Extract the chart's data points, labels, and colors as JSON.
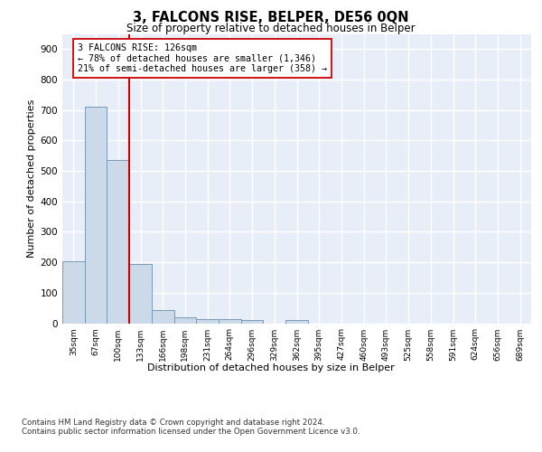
{
  "title": "3, FALCONS RISE, BELPER, DE56 0QN",
  "subtitle": "Size of property relative to detached houses in Belper",
  "xlabel": "Distribution of detached houses by size in Belper",
  "ylabel": "Number of detached properties",
  "categories": [
    "35sqm",
    "67sqm",
    "100sqm",
    "133sqm",
    "166sqm",
    "198sqm",
    "231sqm",
    "264sqm",
    "296sqm",
    "329sqm",
    "362sqm",
    "395sqm",
    "427sqm",
    "460sqm",
    "493sqm",
    "525sqm",
    "558sqm",
    "591sqm",
    "624sqm",
    "656sqm",
    "689sqm"
  ],
  "values": [
    202,
    710,
    537,
    195,
    42,
    20,
    14,
    12,
    10,
    0,
    9,
    0,
    0,
    0,
    0,
    0,
    0,
    0,
    0,
    0,
    0
  ],
  "bar_color": "#ccd9e8",
  "bar_edge_color": "#7799bb",
  "vline_x": 2.5,
  "vline_color": "#cc0000",
  "annotation_text": "3 FALCONS RISE: 126sqm\n← 78% of detached houses are smaller (1,346)\n21% of semi-detached houses are larger (358) →",
  "annotation_box_color": "#ffffff",
  "annotation_box_edge": "#cc0000",
  "ylim": [
    0,
    950
  ],
  "yticks": [
    0,
    100,
    200,
    300,
    400,
    500,
    600,
    700,
    800,
    900
  ],
  "background_color": "#e8eef8",
  "grid_color": "#ffffff",
  "footer_line1": "Contains HM Land Registry data © Crown copyright and database right 2024.",
  "footer_line2": "Contains public sector information licensed under the Open Government Licence v3.0."
}
